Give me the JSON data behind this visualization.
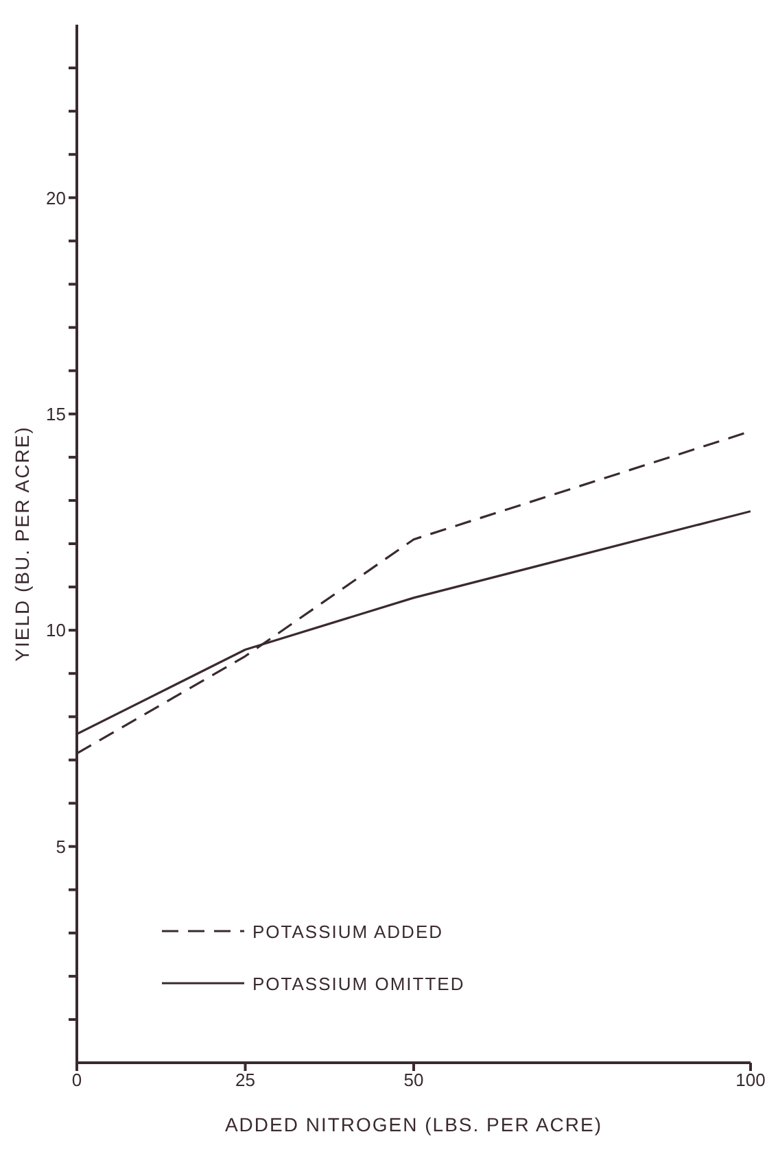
{
  "chart_data": {
    "type": "line",
    "xlabel": "ADDED NITROGEN (LBS. PER ACRE)",
    "ylabel": "YIELD (BU. PER ACRE)",
    "x": [
      0,
      25,
      50,
      100
    ],
    "series": [
      {
        "name": "POTASSIUM ADDED",
        "color": "#3a2a30",
        "values": [
          7.15,
          9.4,
          12.1,
          14.6
        ],
        "line_style": "dashed"
      },
      {
        "name": "POTASSIUM OMITTED",
        "color": "#3a2a30",
        "values": [
          7.6,
          9.55,
          10.75,
          12.75
        ],
        "line_style": "solid"
      }
    ],
    "xlim": [
      0,
      100
    ],
    "xticks": [
      0,
      25,
      50,
      100
    ],
    "ylim": [
      0,
      24
    ],
    "yticks": [
      {
        "value": 1,
        "label": null
      },
      {
        "value": 2,
        "label": null
      },
      {
        "value": 3,
        "label": null
      },
      {
        "value": 4,
        "label": null
      },
      5,
      {
        "value": 6,
        "label": null
      },
      {
        "value": 7,
        "label": null
      },
      {
        "value": 8,
        "label": null
      },
      {
        "value": 9,
        "label": null
      },
      10,
      {
        "value": 11,
        "label": null
      },
      {
        "value": 12,
        "label": null
      },
      {
        "value": 13,
        "label": null
      },
      {
        "value": 14,
        "label": null
      },
      15,
      {
        "value": 16,
        "label": null
      },
      {
        "value": 17,
        "label": null
      },
      {
        "value": 18,
        "label": null
      },
      {
        "value": 19,
        "label": null
      },
      20,
      {
        "value": 21,
        "label": null
      },
      {
        "value": 22,
        "label": null
      },
      {
        "value": 23,
        "label": null
      }
    ],
    "grid": false,
    "legend": "bottom left",
    "marker": "none"
  }
}
